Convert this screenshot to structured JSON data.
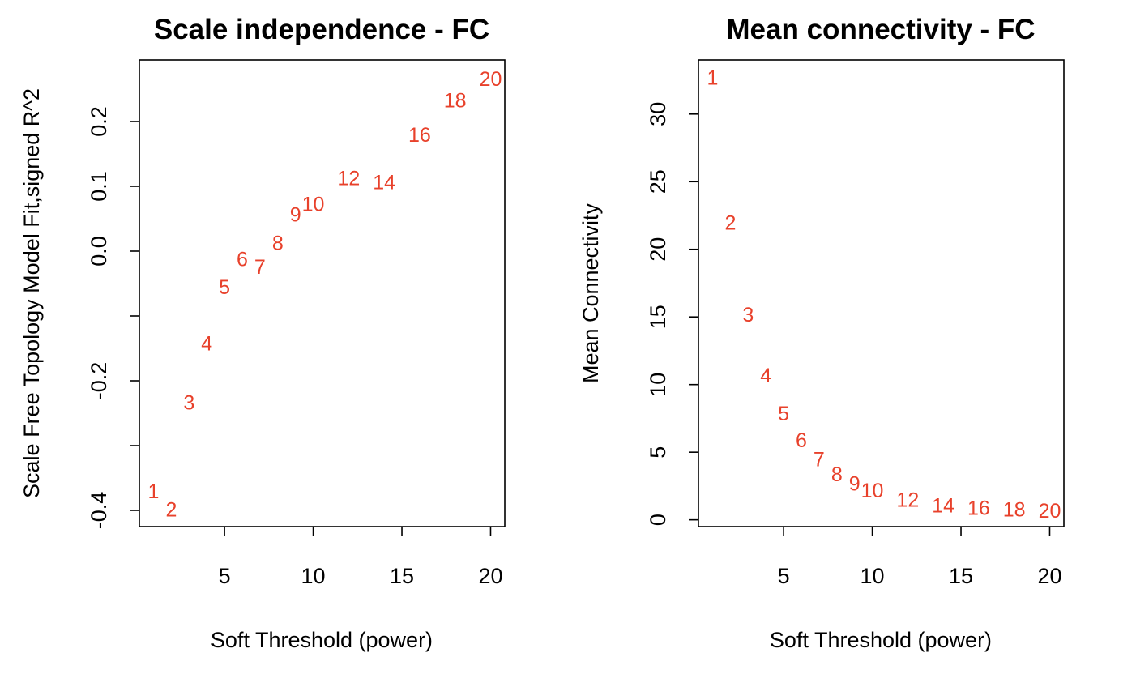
{
  "chart_data": [
    {
      "type": "scatter",
      "title": "Scale independence - FC",
      "xlabel": "Soft Threshold (power)",
      "ylabel": "Scale Free Topology Model Fit,signed R^2",
      "xlim": [
        0.2,
        20.8
      ],
      "ylim": [
        -0.425,
        0.295
      ],
      "xticks": [
        5,
        10,
        15,
        20
      ],
      "yticks": [
        -0.4,
        -0.3,
        -0.2,
        -0.1,
        0.0,
        0.1,
        0.2
      ],
      "ytick_labels": [
        "-0.4",
        "",
        "-0.2",
        "",
        "0.0",
        "0.1",
        "0.2"
      ],
      "point_color": "#e8412b",
      "points": [
        {
          "x": 1,
          "y": -0.37,
          "label": "1"
        },
        {
          "x": 2,
          "y": -0.398,
          "label": "2"
        },
        {
          "x": 3,
          "y": -0.233,
          "label": "3"
        },
        {
          "x": 4,
          "y": -0.142,
          "label": "4"
        },
        {
          "x": 5,
          "y": -0.055,
          "label": "5"
        },
        {
          "x": 6,
          "y": -0.012,
          "label": "6"
        },
        {
          "x": 7,
          "y": -0.024,
          "label": "7"
        },
        {
          "x": 8,
          "y": 0.013,
          "label": "8"
        },
        {
          "x": 9,
          "y": 0.057,
          "label": "9"
        },
        {
          "x": 10,
          "y": 0.073,
          "label": "10"
        },
        {
          "x": 12,
          "y": 0.113,
          "label": "12"
        },
        {
          "x": 14,
          "y": 0.107,
          "label": "14"
        },
        {
          "x": 16,
          "y": 0.18,
          "label": "16"
        },
        {
          "x": 18,
          "y": 0.233,
          "label": "18"
        },
        {
          "x": 20,
          "y": 0.266,
          "label": "20"
        }
      ]
    },
    {
      "type": "scatter",
      "title": "Mean connectivity - FC",
      "xlabel": "Soft Threshold (power)",
      "ylabel": "Mean Connectivity",
      "xlim": [
        0.2,
        20.8
      ],
      "ylim": [
        -0.5,
        34
      ],
      "xticks": [
        5,
        10,
        15,
        20
      ],
      "yticks": [
        0,
        5,
        10,
        15,
        20,
        25,
        30
      ],
      "ytick_labels": [
        "0",
        "5",
        "10",
        "15",
        "20",
        "25",
        "30"
      ],
      "point_color": "#e8412b",
      "points": [
        {
          "x": 1,
          "y": 32.7,
          "label": "1"
        },
        {
          "x": 2,
          "y": 22.0,
          "label": "2"
        },
        {
          "x": 3,
          "y": 15.2,
          "label": "3"
        },
        {
          "x": 4,
          "y": 10.7,
          "label": "4"
        },
        {
          "x": 5,
          "y": 7.9,
          "label": "5"
        },
        {
          "x": 6,
          "y": 5.9,
          "label": "6"
        },
        {
          "x": 7,
          "y": 4.5,
          "label": "7"
        },
        {
          "x": 8,
          "y": 3.4,
          "label": "8"
        },
        {
          "x": 9,
          "y": 2.7,
          "label": "9"
        },
        {
          "x": 10,
          "y": 2.2,
          "label": "10"
        },
        {
          "x": 12,
          "y": 1.5,
          "label": "12"
        },
        {
          "x": 14,
          "y": 1.1,
          "label": "14"
        },
        {
          "x": 16,
          "y": 0.9,
          "label": "16"
        },
        {
          "x": 18,
          "y": 0.8,
          "label": "18"
        },
        {
          "x": 20,
          "y": 0.7,
          "label": "20"
        }
      ]
    }
  ]
}
